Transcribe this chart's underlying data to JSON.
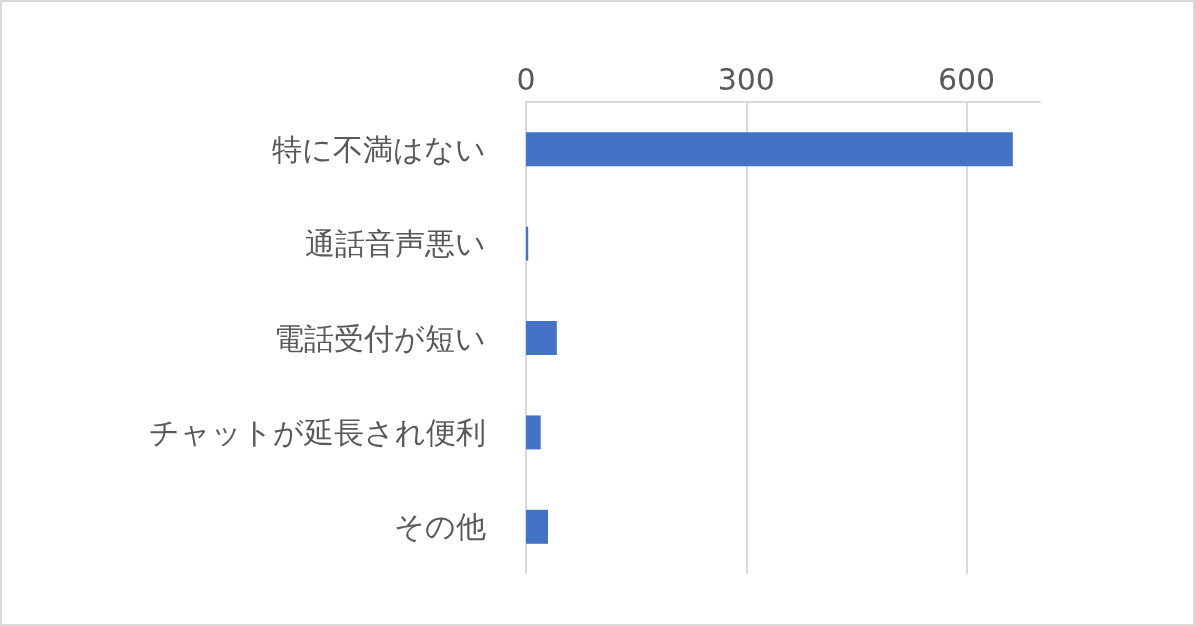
{
  "chart_data": {
    "type": "bar",
    "orientation": "horizontal",
    "categories": [
      "特に不満はない",
      "通話音声悪い",
      "電話受付が短い",
      "チャットが延長され便利",
      "その他"
    ],
    "values": [
      663,
      3,
      42,
      20,
      30
    ],
    "color": "#4472c4",
    "xlim": [
      0,
      700
    ],
    "xticks": [
      0,
      300,
      600
    ],
    "grid": "x"
  }
}
